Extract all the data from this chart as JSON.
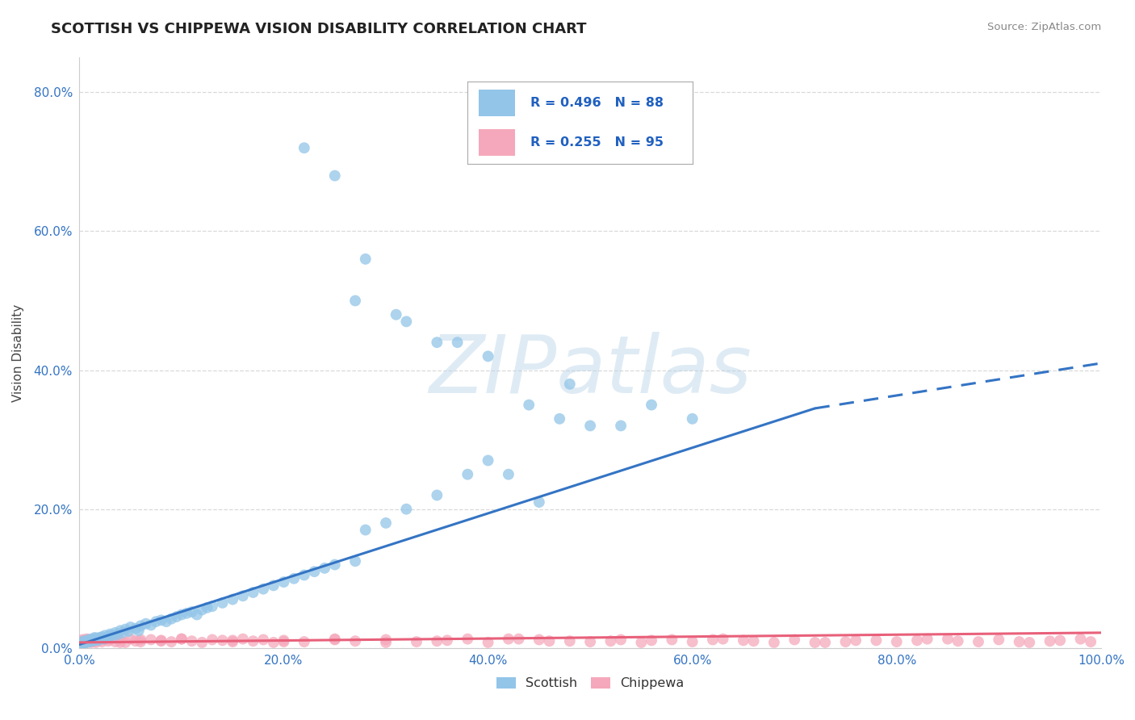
{
  "title": "SCOTTISH VS CHIPPEWA VISION DISABILITY CORRELATION CHART",
  "source": "Source: ZipAtlas.com",
  "ylabel": "Vision Disability",
  "xlim": [
    0,
    1.0
  ],
  "ylim": [
    0,
    0.85
  ],
  "xticks": [
    0.0,
    0.2,
    0.4,
    0.6,
    0.8,
    1.0
  ],
  "yticks": [
    0.0,
    0.2,
    0.4,
    0.6,
    0.8
  ],
  "xtick_labels": [
    "0.0%",
    "20.0%",
    "40.0%",
    "60.0%",
    "80.0%",
    "100.0%"
  ],
  "ytick_labels": [
    "0.0%",
    "20.0%",
    "40.0%",
    "60.0%",
    "80.0%"
  ],
  "scottish_color": "#92c5e8",
  "chippewa_color": "#f5a8bb",
  "scottish_line_color": "#3474c4",
  "chippewa_line_color": "#e8607a",
  "r_scottish": 0.496,
  "n_scottish": 88,
  "r_chippewa": 0.255,
  "n_chippewa": 95,
  "background_color": "#ffffff",
  "grid_color": "#d0d0d0",
  "watermark": "ZIPatlas",
  "scottish_line_x0": 0.0,
  "scottish_line_y0": 0.005,
  "scottish_line_x1": 0.72,
  "scottish_line_y1": 0.345,
  "scottish_line_dash_x0": 0.72,
  "scottish_line_dash_y0": 0.345,
  "scottish_line_dash_x1": 1.0,
  "scottish_line_dash_y1": 0.41,
  "chippewa_line_x0": 0.0,
  "chippewa_line_y0": 0.008,
  "chippewa_line_x1": 1.0,
  "chippewa_line_y1": 0.022,
  "scottish_points_x": [
    0.001,
    0.002,
    0.003,
    0.004,
    0.005,
    0.006,
    0.007,
    0.008,
    0.009,
    0.01,
    0.011,
    0.012,
    0.013,
    0.014,
    0.015,
    0.016,
    0.017,
    0.018,
    0.019,
    0.02,
    0.022,
    0.024,
    0.025,
    0.027,
    0.029,
    0.03,
    0.032,
    0.035,
    0.037,
    0.04,
    0.042,
    0.045,
    0.048,
    0.05,
    0.055,
    0.058,
    0.06,
    0.065,
    0.07,
    0.075,
    0.08,
    0.085,
    0.09,
    0.095,
    0.1,
    0.105,
    0.11,
    0.115,
    0.12,
    0.125,
    0.13,
    0.14,
    0.15,
    0.16,
    0.17,
    0.18,
    0.19,
    0.2,
    0.21,
    0.22,
    0.23,
    0.24,
    0.25,
    0.27,
    0.28,
    0.3,
    0.32,
    0.35,
    0.38,
    0.4,
    0.42,
    0.45,
    0.47,
    0.5,
    0.53,
    0.56,
    0.6,
    0.22,
    0.25,
    0.28,
    0.31,
    0.35,
    0.4,
    0.44,
    0.48,
    0.27,
    0.32,
    0.37
  ],
  "scottish_points_y": [
    0.005,
    0.008,
    0.006,
    0.01,
    0.007,
    0.009,
    0.008,
    0.01,
    0.012,
    0.009,
    0.011,
    0.013,
    0.01,
    0.012,
    0.015,
    0.013,
    0.011,
    0.014,
    0.012,
    0.015,
    0.016,
    0.013,
    0.018,
    0.015,
    0.017,
    0.02,
    0.018,
    0.022,
    0.019,
    0.025,
    0.022,
    0.027,
    0.024,
    0.03,
    0.028,
    0.025,
    0.032,
    0.035,
    0.033,
    0.038,
    0.04,
    0.038,
    0.042,
    0.045,
    0.048,
    0.05,
    0.052,
    0.048,
    0.055,
    0.058,
    0.06,
    0.065,
    0.07,
    0.075,
    0.08,
    0.085,
    0.09,
    0.095,
    0.1,
    0.105,
    0.11,
    0.115,
    0.12,
    0.125,
    0.17,
    0.18,
    0.2,
    0.22,
    0.25,
    0.27,
    0.25,
    0.21,
    0.33,
    0.32,
    0.32,
    0.35,
    0.33,
    0.72,
    0.68,
    0.56,
    0.48,
    0.44,
    0.42,
    0.35,
    0.38,
    0.5,
    0.47,
    0.44
  ],
  "chippewa_points_x": [
    0.001,
    0.002,
    0.003,
    0.004,
    0.005,
    0.006,
    0.007,
    0.008,
    0.009,
    0.01,
    0.011,
    0.012,
    0.013,
    0.014,
    0.015,
    0.016,
    0.018,
    0.02,
    0.022,
    0.025,
    0.028,
    0.03,
    0.035,
    0.04,
    0.045,
    0.05,
    0.055,
    0.06,
    0.07,
    0.08,
    0.09,
    0.1,
    0.11,
    0.12,
    0.13,
    0.14,
    0.15,
    0.16,
    0.17,
    0.18,
    0.19,
    0.2,
    0.22,
    0.25,
    0.27,
    0.3,
    0.33,
    0.36,
    0.4,
    0.43,
    0.46,
    0.5,
    0.53,
    0.56,
    0.6,
    0.63,
    0.66,
    0.7,
    0.73,
    0.76,
    0.8,
    0.83,
    0.86,
    0.9,
    0.93,
    0.96,
    0.99,
    0.42,
    0.52,
    0.62,
    0.72,
    0.82,
    0.92,
    0.38,
    0.48,
    0.58,
    0.68,
    0.78,
    0.88,
    0.98,
    0.35,
    0.45,
    0.55,
    0.65,
    0.75,
    0.85,
    0.95,
    0.25,
    0.3,
    0.15,
    0.2,
    0.1,
    0.08,
    0.06,
    0.04
  ],
  "chippewa_points_y": [
    0.01,
    0.008,
    0.012,
    0.009,
    0.011,
    0.007,
    0.013,
    0.01,
    0.009,
    0.012,
    0.008,
    0.011,
    0.009,
    0.013,
    0.01,
    0.008,
    0.012,
    0.011,
    0.009,
    0.013,
    0.01,
    0.012,
    0.009,
    0.011,
    0.008,
    0.013,
    0.01,
    0.009,
    0.012,
    0.011,
    0.009,
    0.013,
    0.01,
    0.008,
    0.012,
    0.011,
    0.009,
    0.013,
    0.01,
    0.012,
    0.008,
    0.011,
    0.009,
    0.013,
    0.01,
    0.012,
    0.009,
    0.011,
    0.008,
    0.013,
    0.01,
    0.009,
    0.012,
    0.011,
    0.009,
    0.013,
    0.01,
    0.012,
    0.008,
    0.011,
    0.009,
    0.013,
    0.01,
    0.012,
    0.008,
    0.011,
    0.009,
    0.013,
    0.01,
    0.012,
    0.008,
    0.011,
    0.009,
    0.013,
    0.01,
    0.012,
    0.008,
    0.011,
    0.009,
    0.013,
    0.01,
    0.012,
    0.008,
    0.011,
    0.009,
    0.013,
    0.01,
    0.012,
    0.008,
    0.011,
    0.009,
    0.013,
    0.01,
    0.012,
    0.008
  ]
}
